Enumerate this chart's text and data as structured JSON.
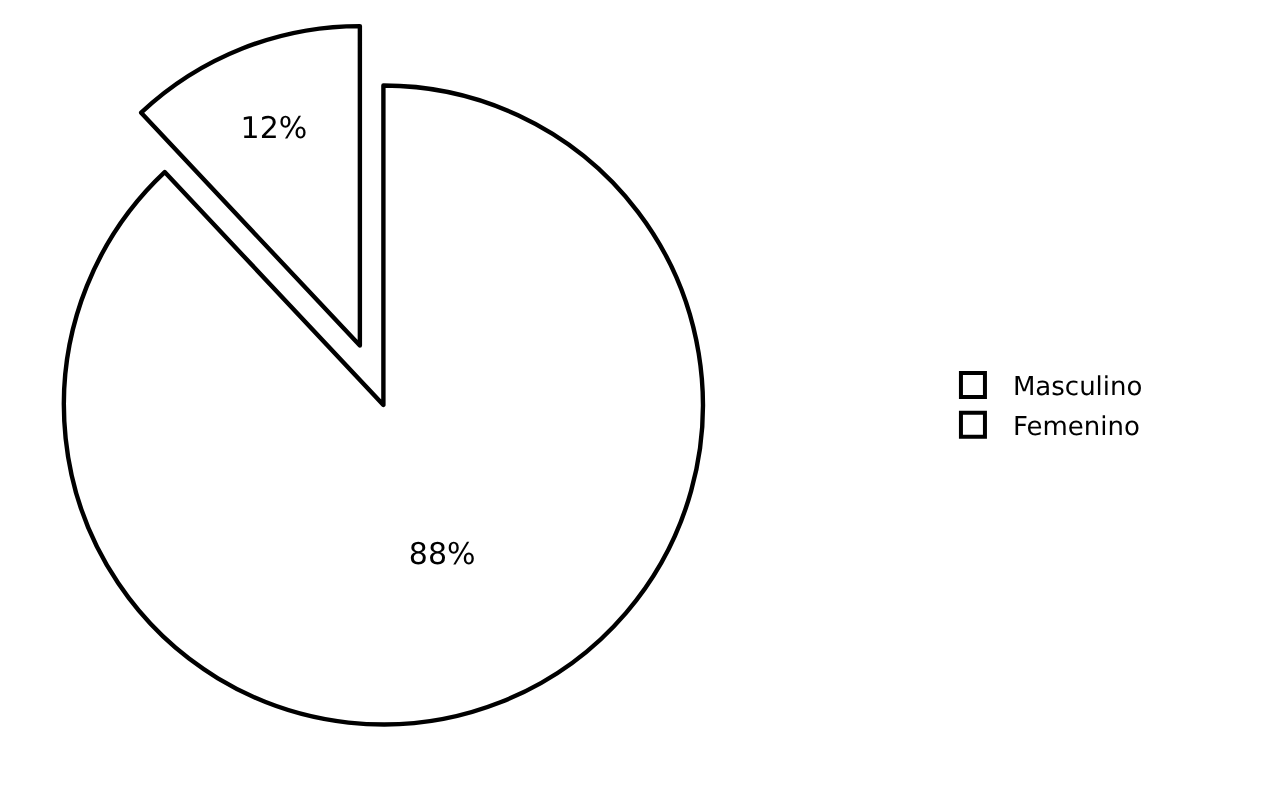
{
  "chart_data": {
    "type": "pie",
    "categories": [
      "Masculino",
      "Femenino"
    ],
    "values": [
      88,
      12
    ],
    "colors": [
      "#ffffff",
      "#ffffff"
    ],
    "value_labels": [
      "88%",
      "12%"
    ],
    "legend": "right"
  }
}
